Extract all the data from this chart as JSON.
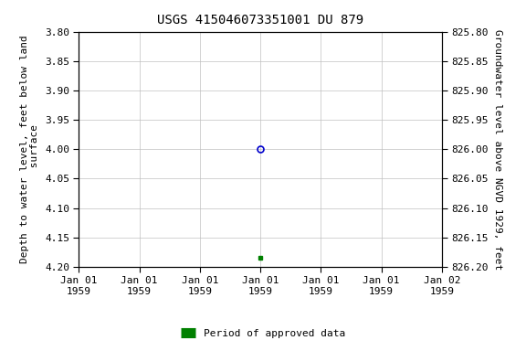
{
  "title": "USGS 415046073351001 DU 879",
  "ylabel_left": "Depth to water level, feet below land\n surface",
  "ylabel_right": "Groundwater level above NGVD 1929, feet",
  "ylim_left": [
    3.8,
    4.2
  ],
  "ylim_right_top": 826.2,
  "ylim_right_bottom": 825.8,
  "xlim": [
    0,
    6
  ],
  "xtick_positions": [
    0,
    1,
    2,
    3,
    4,
    5,
    6
  ],
  "xtick_labels": [
    "Jan 01\n1959",
    "Jan 01\n1959",
    "Jan 01\n1959",
    "Jan 01\n1959",
    "Jan 01\n1959",
    "Jan 01\n1959",
    "Jan 02\n1959"
  ],
  "yticks_left": [
    3.8,
    3.85,
    3.9,
    3.95,
    4.0,
    4.05,
    4.1,
    4.15,
    4.2
  ],
  "yticks_right": [
    826.2,
    826.15,
    826.1,
    826.05,
    826.0,
    825.95,
    825.9,
    825.85,
    825.8
  ],
  "data_point_x": 3,
  "data_point_y_circle": 4.0,
  "data_point_y_square": 4.185,
  "circle_color": "#0000cc",
  "square_color": "#008000",
  "legend_label": "Period of approved data",
  "legend_color": "#008000",
  "background_color": "#ffffff",
  "grid_color": "#c0c0c0",
  "title_fontsize": 10,
  "axis_label_fontsize": 8,
  "tick_fontsize": 8
}
